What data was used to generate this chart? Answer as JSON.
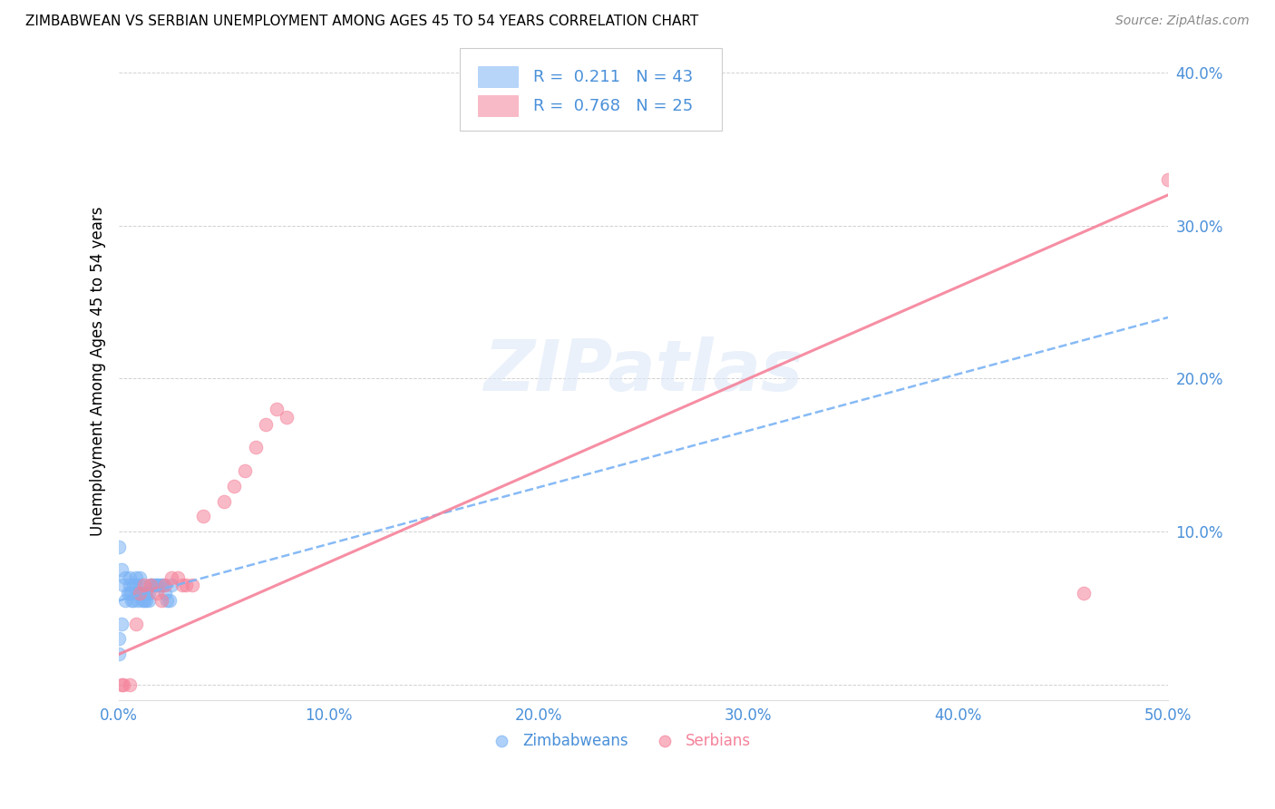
{
  "title": "ZIMBABWEAN VS SERBIAN UNEMPLOYMENT AMONG AGES 45 TO 54 YEARS CORRELATION CHART",
  "source": "Source: ZipAtlas.com",
  "ylabel": "Unemployment Among Ages 45 to 54 years",
  "xlim": [
    0.0,
    0.5
  ],
  "ylim": [
    -0.01,
    0.42
  ],
  "xticks": [
    0.0,
    0.1,
    0.2,
    0.3,
    0.4,
    0.5
  ],
  "yticks": [
    0.0,
    0.1,
    0.2,
    0.3,
    0.4
  ],
  "xtick_labels": [
    "0.0%",
    "10.0%",
    "20.0%",
    "30.0%",
    "40.0%",
    "50.0%"
  ],
  "ytick_labels": [
    "",
    "10.0%",
    "20.0%",
    "30.0%",
    "40.0%"
  ],
  "zimbabwe_color": "#7ab3f5",
  "serbia_color": "#f5829a",
  "tick_color": "#4a90d9",
  "R_zimbabwe": 0.211,
  "N_zimbabwe": 43,
  "R_serbia": 0.768,
  "N_serbia": 25,
  "watermark": "ZIPatlas",
  "zimbabwe_x": [
    0.0,
    0.001,
    0.002,
    0.003,
    0.003,
    0.004,
    0.005,
    0.005,
    0.005,
    0.006,
    0.006,
    0.007,
    0.007,
    0.008,
    0.008,
    0.008,
    0.009,
    0.009,
    0.01,
    0.01,
    0.01,
    0.011,
    0.011,
    0.012,
    0.012,
    0.013,
    0.013,
    0.014,
    0.014,
    0.015,
    0.016,
    0.017,
    0.018,
    0.019,
    0.02,
    0.021,
    0.022,
    0.023,
    0.024,
    0.025,
    0.001,
    0.0,
    0.0
  ],
  "zimbabwe_y": [
    0.09,
    0.075,
    0.065,
    0.07,
    0.055,
    0.06,
    0.06,
    0.065,
    0.07,
    0.055,
    0.06,
    0.055,
    0.065,
    0.06,
    0.065,
    0.07,
    0.055,
    0.06,
    0.06,
    0.065,
    0.07,
    0.055,
    0.06,
    0.055,
    0.06,
    0.055,
    0.06,
    0.055,
    0.06,
    0.065,
    0.065,
    0.065,
    0.065,
    0.065,
    0.065,
    0.065,
    0.06,
    0.055,
    0.055,
    0.065,
    0.04,
    0.03,
    0.02
  ],
  "serbia_x": [
    0.001,
    0.002,
    0.005,
    0.008,
    0.01,
    0.012,
    0.015,
    0.018,
    0.02,
    0.022,
    0.025,
    0.028,
    0.03,
    0.032,
    0.035,
    0.04,
    0.05,
    0.055,
    0.06,
    0.065,
    0.07,
    0.075,
    0.08,
    0.46,
    0.5
  ],
  "serbia_y": [
    0.0,
    0.0,
    0.0,
    0.04,
    0.06,
    0.065,
    0.065,
    0.06,
    0.055,
    0.065,
    0.07,
    0.07,
    0.065,
    0.065,
    0.065,
    0.11,
    0.12,
    0.13,
    0.14,
    0.155,
    0.17,
    0.18,
    0.175,
    0.06,
    0.33
  ],
  "trendline_zim_x0": 0.0,
  "trendline_zim_y0": 0.055,
  "trendline_zim_x1": 0.5,
  "trendline_zim_y1": 0.24,
  "trendline_ser_x0": 0.0,
  "trendline_ser_y0": 0.02,
  "trendline_ser_x1": 0.5,
  "trendline_ser_y1": 0.32
}
